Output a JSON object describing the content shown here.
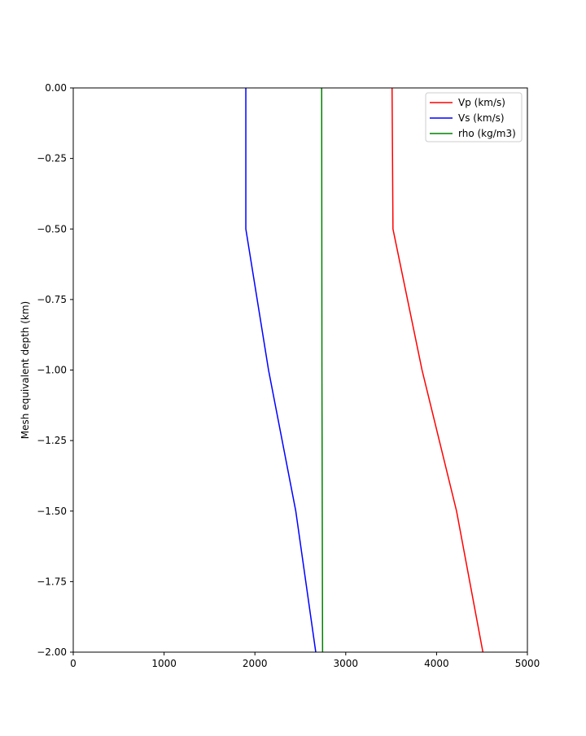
{
  "chart_data": {
    "type": "line",
    "title": "",
    "xlabel": "",
    "ylabel": "Mesh equivalent depth (km)",
    "xlim": [
      0,
      5000
    ],
    "ylim": [
      -2.0,
      0.0
    ],
    "xticks": [
      0,
      1000,
      2000,
      3000,
      4000,
      5000
    ],
    "xtick_labels": [
      "0",
      "1000",
      "2000",
      "3000",
      "4000",
      "5000"
    ],
    "yticks": [
      0.0,
      -0.25,
      -0.5,
      -0.75,
      -1.0,
      -1.25,
      -1.5,
      -1.75,
      -2.0
    ],
    "ytick_labels": [
      "0.00",
      "−0.25",
      "−0.50",
      "−0.75",
      "−1.00",
      "−1.25",
      "−1.50",
      "−1.75",
      "−2.00"
    ],
    "grid": false,
    "legend_position": "top-right",
    "series": [
      {
        "name": "Vp (km/s)",
        "color": "#ff0000",
        "points": [
          [
            3510,
            0.0
          ],
          [
            3520,
            -0.5
          ],
          [
            3840,
            -1.0
          ],
          [
            4220,
            -1.5
          ],
          [
            4510,
            -2.0
          ]
        ]
      },
      {
        "name": "Vs (km/s)",
        "color": "#0000ff",
        "points": [
          [
            1900,
            0.0
          ],
          [
            1900,
            -0.5
          ],
          [
            2150,
            -1.0
          ],
          [
            2450,
            -1.5
          ],
          [
            2670,
            -2.0
          ]
        ]
      },
      {
        "name": "rho (kg/m3)",
        "color": "#008000",
        "points": [
          [
            2735,
            0.0
          ],
          [
            2738,
            -1.0
          ],
          [
            2745,
            -2.0
          ]
        ]
      }
    ]
  }
}
